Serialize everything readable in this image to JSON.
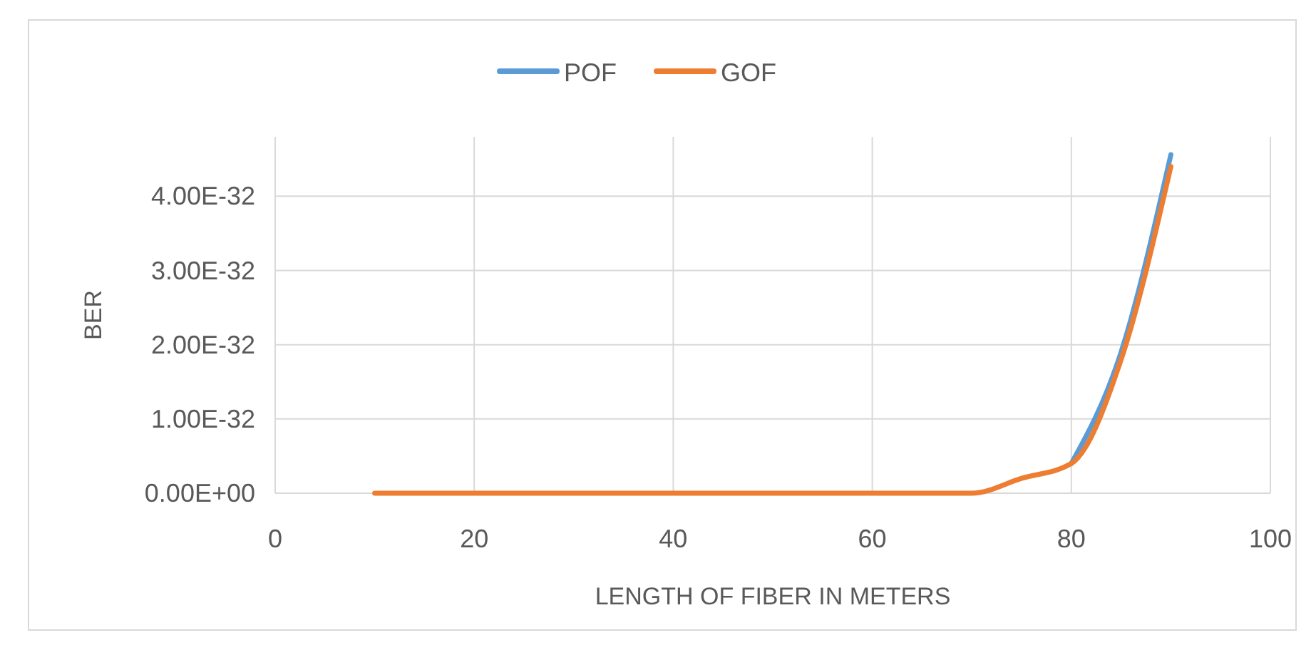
{
  "chart_data": {
    "type": "line",
    "xlabel": "LENGTH OF FIBER IN METERS",
    "ylabel": "BER",
    "x": [
      10,
      20,
      30,
      40,
      50,
      60,
      65,
      70,
      75,
      80,
      85,
      90
    ],
    "series": [
      {
        "name": "POF",
        "color": "#5b9bd5",
        "values": [
          null,
          null,
          null,
          null,
          null,
          null,
          null,
          null,
          null,
          4e-33,
          1.9e-32,
          4.56e-32
        ]
      },
      {
        "name": "GOF",
        "color": "#ed7d31",
        "values": [
          0,
          0,
          0,
          0,
          0,
          0,
          0,
          0,
          2e-33,
          4e-33,
          1.8e-32,
          4.4e-32
        ]
      }
    ],
    "xlim": [
      0,
      100
    ],
    "xticks": [
      0,
      20,
      40,
      60,
      80,
      100
    ],
    "ylim": [
      0,
      4.8e-32
    ],
    "yticks": [
      {
        "value": 0,
        "label": "0.00E+00"
      },
      {
        "value": 1e-32,
        "label": "1.00E-32"
      },
      {
        "value": 2e-32,
        "label": "2.00E-32"
      },
      {
        "value": 3e-32,
        "label": "3.00E-32"
      },
      {
        "value": 4e-32,
        "label": "4.00E-32"
      }
    ],
    "grid": true,
    "legend": "top",
    "marker": "none",
    "line_style": "solid"
  }
}
